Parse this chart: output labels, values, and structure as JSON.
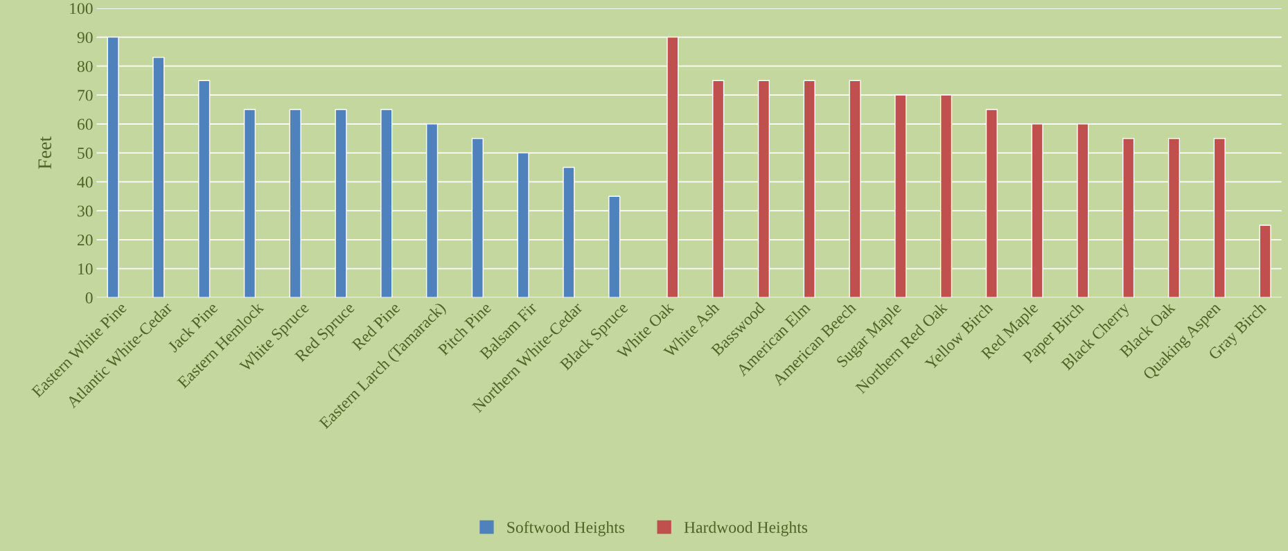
{
  "chart_data": {
    "type": "bar",
    "ylabel": "Feet",
    "categories": [
      "Eastern White Pine",
      "Atlantic White-Cedar",
      "Jack Pine",
      "Eastern Hemlock",
      "White Spruce",
      "Red Spruce",
      "Red Pine",
      "Eastern Larch (Tamarack)",
      "Pitch Pine",
      "Balsam Fir",
      "Northern White-Cedar",
      "Black Spruce",
      "White Oak",
      "White Ash",
      "Basswood",
      "American Elm",
      "American Beech",
      "Sugar Maple",
      "Northern Red Oak",
      "Yellow Birch",
      "Red Maple",
      "Paper Birch",
      "Black Cherry",
      "Black Oak",
      "Quaking Aspen",
      "Gray Birch"
    ],
    "series": [
      {
        "name": "Softwood Heights",
        "color": "#4f81bd",
        "values": [
          90,
          83,
          75,
          65,
          65,
          65,
          65,
          60,
          55,
          50,
          45,
          35,
          null,
          null,
          null,
          null,
          null,
          null,
          null,
          null,
          null,
          null,
          null,
          null,
          null,
          null
        ]
      },
      {
        "name": "Hardwood Heights",
        "color": "#c0504d",
        "values": [
          null,
          null,
          null,
          null,
          null,
          null,
          null,
          null,
          null,
          null,
          null,
          null,
          90,
          75,
          75,
          75,
          75,
          70,
          70,
          65,
          60,
          60,
          55,
          55,
          55,
          25
        ]
      }
    ],
    "ylim": [
      0,
      100
    ],
    "yticks": [
      0,
      10,
      20,
      30,
      40,
      50,
      60,
      70,
      80,
      90,
      100
    ],
    "grid": "y",
    "legend": "bottom"
  }
}
